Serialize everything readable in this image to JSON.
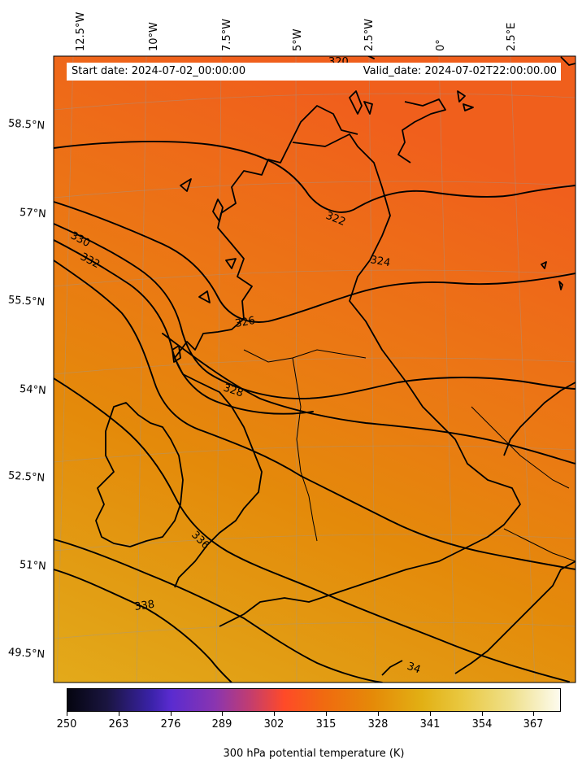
{
  "header": {
    "start_date": "Start date: 2024-07-02_00:00:00",
    "valid_date": "Valid_date: 2024-07-02T22:00:00.00"
  },
  "longitude_labels": [
    "12.5°W",
    "10°W",
    "7.5°W",
    "5°W",
    "2.5°W",
    "0°",
    "2.5°E"
  ],
  "latitude_labels": [
    "58.5°N",
    "57°N",
    "55.5°N",
    "54°N",
    "52.5°N",
    "51°N",
    "49.5°N"
  ],
  "contour_labels": [
    "320",
    "322",
    "324",
    "326",
    "328",
    "330",
    "332",
    "336",
    "338",
    "34"
  ],
  "colorbar": {
    "ticks": [
      "250",
      "263",
      "276",
      "289",
      "302",
      "315",
      "328",
      "341",
      "354",
      "367"
    ],
    "title": "300 hPa potential temperature (K)",
    "range": [
      250,
      373
    ],
    "colormap": "CMRmap"
  },
  "colors": {
    "field_north": "#f0651a",
    "field_mid": "#e5880a",
    "field_south": "#e2a818",
    "contour": "#000000"
  }
}
